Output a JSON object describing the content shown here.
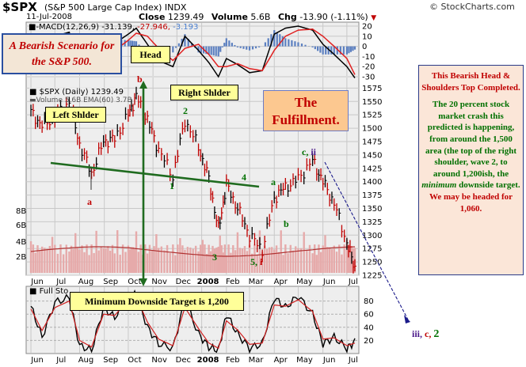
{
  "header": {
    "symbol": "$SPX",
    "name": "(S&P 500 Large Cap Index) INDX",
    "brand": "© StockCharts.com",
    "date": "11-Jul-2008",
    "close_label": "Close",
    "close_value": "1239.49",
    "volume_label": "Volume",
    "volume_value": "5.6B",
    "chg_label": "Chg",
    "chg_value": "-13.90 (-1.11%)",
    "chg_arrow": "▼"
  },
  "macd": {
    "legend_prefix": "■-MACD(12,26,9)",
    "legend_v1": "-31.139,",
    "legend_v2": "-27.946,",
    "legend_v3": "-3.193",
    "ylim": [
      -30,
      20
    ],
    "ticks": [
      "20",
      "10",
      "0",
      "-10",
      "-20",
      "-30"
    ]
  },
  "price": {
    "legend": "■ $SPX (Daily) 1239.49",
    "legend2": "▬Volume 5.6B  EMA(60) 3.7B",
    "ylim": [
      1225,
      1580
    ],
    "ticks": [
      "1575",
      "1550",
      "1525",
      "1500",
      "1475",
      "1450",
      "1425",
      "1400",
      "1375",
      "1350",
      "1325",
      "1300",
      "1275",
      "1250",
      "1225"
    ],
    "volume_ticks": [
      "8B",
      "6B",
      "4B",
      "2B"
    ]
  },
  "stoch": {
    "legend": "■ Full Sto",
    "ylim": [
      0,
      100
    ],
    "ticks": [
      "80",
      "60",
      "40",
      "20"
    ]
  },
  "x_axis": {
    "months": [
      "Jun",
      "Jul",
      "Aug",
      "Sep",
      "Oct",
      "Nov",
      "Dec",
      "2008",
      "Feb",
      "Mar",
      "Apr",
      "May",
      "Jun",
      "Jul"
    ]
  },
  "annotations": {
    "scenario": "A Bearish Scenario for the S&P 500.",
    "head": "Head",
    "right_shoulder": "Right Shlder",
    "left_shoulder": "Left Shlder",
    "fulfillment": "The Fulfillment.",
    "min_target": "Minimum Downside Target is 1,200",
    "wave_a": "a",
    "wave_b": "b",
    "wave_1": "1",
    "wave_2": "2",
    "wave_3": "3",
    "wave_4": "4",
    "wave_5i_5": "5,",
    "wave_5i_i": "i",
    "wave_a2": "a",
    "wave_b2": "b",
    "wave_cii_c": "c,",
    "wave_cii_ii": "ii",
    "wave_end_iii": "iii,",
    "wave_end_c": "c,",
    "wave_end_2": "2"
  },
  "note": {
    "title": "This Bearish Head & Shoulders Top Completed.",
    "body_a": "The 20 percent stock market crash this predicted is happening, from around the 1,500 area (the top of the right shoulder, wave 2, to around 1,200ish, the",
    "body_em": "minimum",
    "body_b": "downside target.",
    "tail": "We may be headed for 1,060."
  },
  "colors": {
    "bearish_red": "#c00000",
    "wave_green": "#007000",
    "panel_bg": "#eeeeee",
    "box_yellow": "#ffff99",
    "neckline": "#1f6b1f"
  },
  "chart_data": [
    {
      "type": "line",
      "panel": "price",
      "title": "$SPX (S&P 500 Large Cap Index) INDX",
      "ylim": [
        1225,
        1580
      ],
      "series": [
        {
          "name": "$SPX (Daily)",
          "x": [
            "2007-06-01",
            "2007-06-15",
            "2007-07-01",
            "2007-07-19",
            "2007-08-01",
            "2007-08-16",
            "2007-08-31",
            "2007-09-14",
            "2007-10-01",
            "2007-10-11",
            "2007-10-25",
            "2007-11-08",
            "2007-11-26",
            "2007-12-11",
            "2007-12-28",
            "2008-01-10",
            "2008-01-22",
            "2008-02-01",
            "2008-02-15",
            "2008-03-01",
            "2008-03-17",
            "2008-04-01",
            "2008-04-15",
            "2008-05-01",
            "2008-05-19",
            "2008-06-01",
            "2008-06-15",
            "2008-07-01",
            "2008-07-11"
          ],
          "values": [
            1530,
            1505,
            1520,
            1550,
            1470,
            1415,
            1475,
            1480,
            1525,
            1560,
            1515,
            1460,
            1410,
            1515,
            1465,
            1405,
            1310,
            1395,
            1350,
            1300,
            1272,
            1370,
            1390,
            1405,
            1440,
            1400,
            1360,
            1285,
            1239
          ]
        }
      ],
      "neckline": {
        "x": [
          "2007-06-01",
          "2008-03-10"
        ],
        "y": [
          1425,
          1385
        ]
      },
      "minimum_target": 1200
    },
    {
      "type": "line",
      "panel": "macd",
      "title": "MACD(12,26,9)",
      "ylim": [
        -30,
        20
      ],
      "series": [
        {
          "name": "MACD",
          "values": [
            4,
            -3,
            10,
            14,
            -20,
            -25,
            -8,
            3,
            12,
            18,
            2,
            -14,
            -20,
            10,
            -4,
            -16,
            -30,
            -12,
            -18,
            -26,
            -24,
            12,
            18,
            20,
            16,
            2,
            -8,
            -20,
            -31.139
          ]
        },
        {
          "name": "Signal",
          "values": [
            2,
            0,
            4,
            9,
            -6,
            -18,
            -14,
            -4,
            6,
            13,
            10,
            -2,
            -14,
            -2,
            2,
            -8,
            -20,
            -20,
            -17,
            -22,
            -24,
            -4,
            10,
            16,
            17,
            10,
            0,
            -12,
            -27.946
          ]
        },
        {
          "name": "Histogram",
          "values": [
            2,
            -3,
            6,
            5,
            -14,
            -7,
            6,
            7,
            6,
            5,
            -8,
            -12,
            -6,
            12,
            -6,
            -8,
            -10,
            8,
            -1,
            -4,
            0,
            16,
            8,
            4,
            -1,
            -8,
            -8,
            -8,
            -3.193
          ]
        }
      ]
    },
    {
      "type": "line",
      "panel": "stoch",
      "title": "Full Sto",
      "ylim": [
        0,
        100
      ],
      "series": [
        {
          "name": "%K",
          "values": [
            72,
            25,
            78,
            85,
            12,
            5,
            70,
            55,
            88,
            90,
            40,
            15,
            8,
            82,
            30,
            10,
            5,
            60,
            30,
            8,
            15,
            85,
            70,
            88,
            60,
            15,
            25,
            8,
            18
          ]
        },
        {
          "name": "%D",
          "values": [
            68,
            35,
            70,
            80,
            20,
            10,
            60,
            58,
            82,
            86,
            48,
            22,
            12,
            70,
            38,
            16,
            8,
            50,
            36,
            14,
            16,
            74,
            72,
            82,
            64,
            22,
            24,
            12,
            16
          ]
        }
      ]
    }
  ]
}
